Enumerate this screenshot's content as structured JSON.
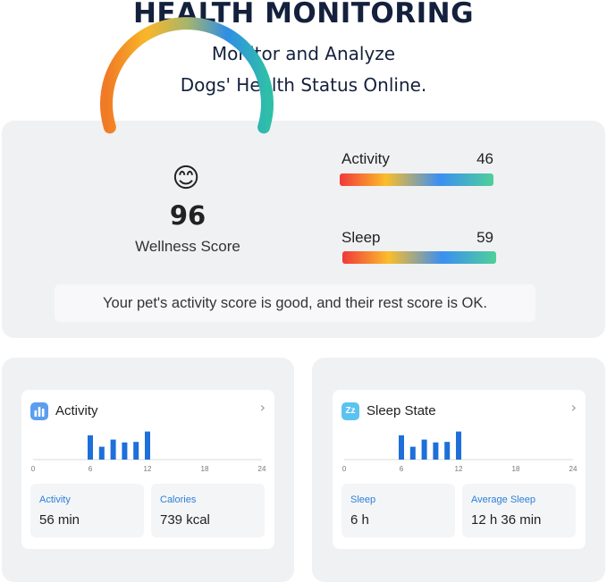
{
  "header": {
    "title": "HEALTH MONITORING",
    "subtitle_line1": "Monitor and Analyze",
    "subtitle_line2": "Dogs' Health Status Online."
  },
  "wellness": {
    "emoji": "😊",
    "score": "96",
    "score_fraction": 0.96,
    "label": "Wellness Score"
  },
  "metrics": [
    {
      "name": "Activity",
      "value": "46"
    },
    {
      "name": "Sleep",
      "value": "59"
    }
  ],
  "summary": "Your pet's activity score is good, and their rest score is OK.",
  "colors": {
    "navy": "#14213d",
    "bar_blue": "#1e6fd9",
    "label_blue": "#2b7fd8",
    "activity_icon": "#5b9ef0",
    "sleep_icon": "#5cc3f0",
    "gradient": [
      "#f0393a",
      "#fbbd2b",
      "#3b8ff2",
      "#4fd099"
    ]
  },
  "activity_card": {
    "title": "Activity",
    "icon": "bar-chart-icon",
    "chevron": "›",
    "axis_ticks": [
      "0",
      "6",
      "12",
      "18",
      "24"
    ],
    "bars": [
      0.85,
      0.45,
      0.7,
      0.6,
      0.62,
      0.98
    ],
    "stats": [
      {
        "label": "Activity",
        "value": "56 min"
      },
      {
        "label": "Calories",
        "value": "739 kcal"
      }
    ]
  },
  "sleep_card": {
    "title": "Sleep State",
    "icon": "zzz-icon",
    "icon_text": "Zz",
    "chevron": "›",
    "axis_ticks": [
      "0",
      "6",
      "12",
      "18",
      "24"
    ],
    "bars": [
      0.85,
      0.45,
      0.7,
      0.6,
      0.62,
      0.98
    ],
    "stats": [
      {
        "label": "Sleep",
        "value": "6 h"
      },
      {
        "label": "Average Sleep",
        "value": "12 h 36 min"
      }
    ]
  }
}
